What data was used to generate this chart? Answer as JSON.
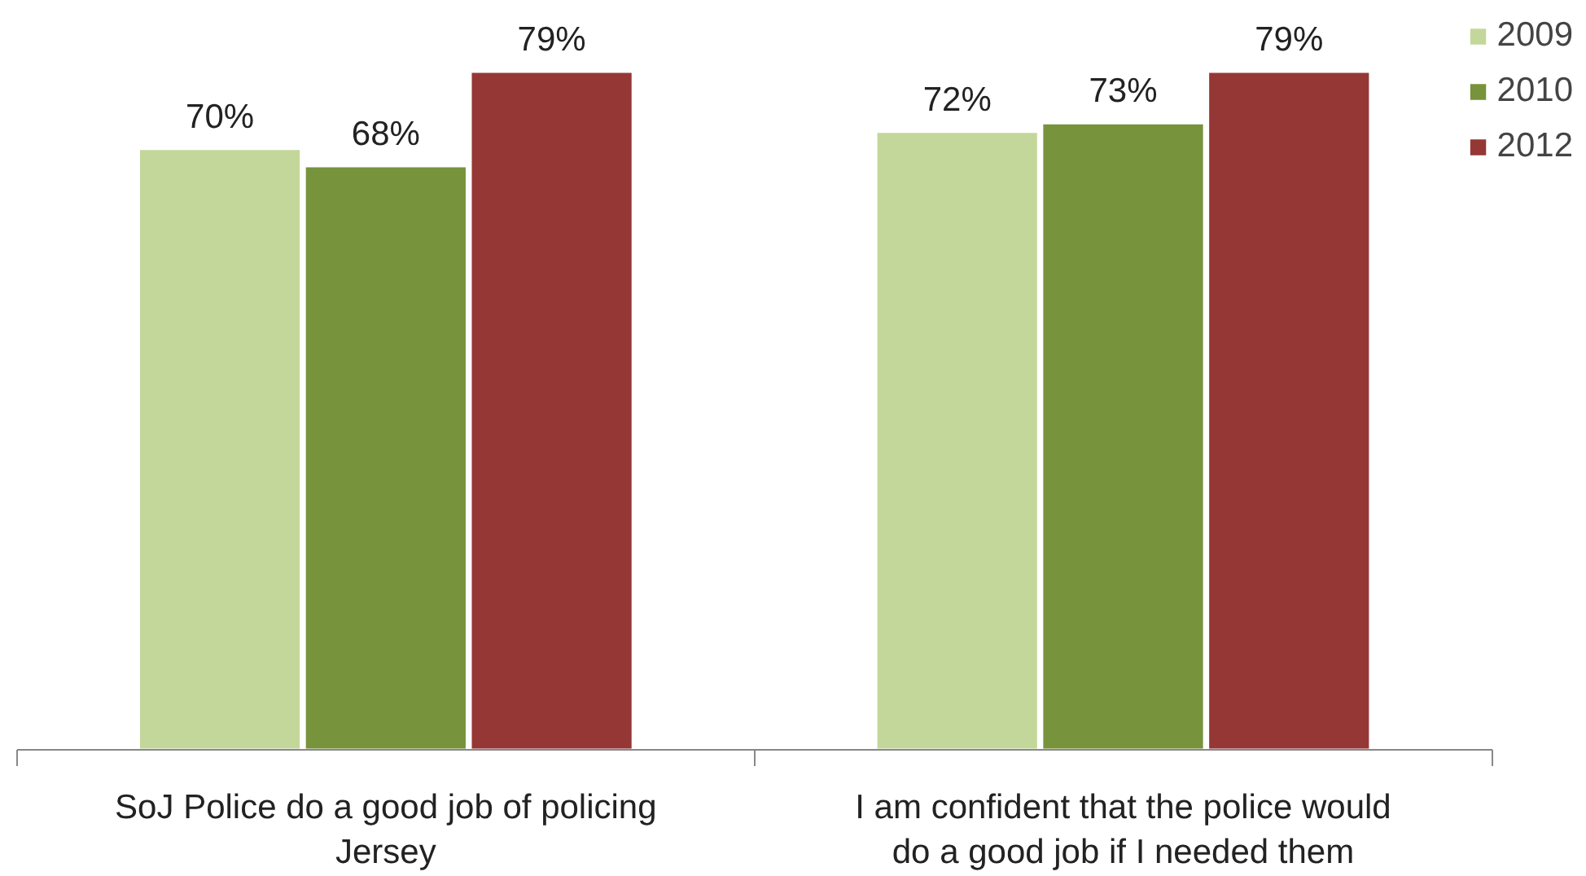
{
  "chart_data": {
    "type": "bar",
    "categories": [
      "SoJ Police do a good job of policing Jersey",
      "I am confident that the police would do a good job if I needed them"
    ],
    "series": [
      {
        "name": "2009",
        "color": "#c4d79b",
        "values": [
          70,
          72
        ],
        "value_labels": [
          "70%",
          "72%"
        ]
      },
      {
        "name": "2010",
        "color": "#77933c",
        "values": [
          68,
          73
        ],
        "value_labels": [
          "68%",
          "73%"
        ]
      },
      {
        "name": "2012",
        "color": "#953735",
        "values": [
          79,
          79
        ],
        "value_labels": [
          "79%",
          "79%"
        ]
      }
    ],
    "grid": false,
    "legend": "top right"
  }
}
